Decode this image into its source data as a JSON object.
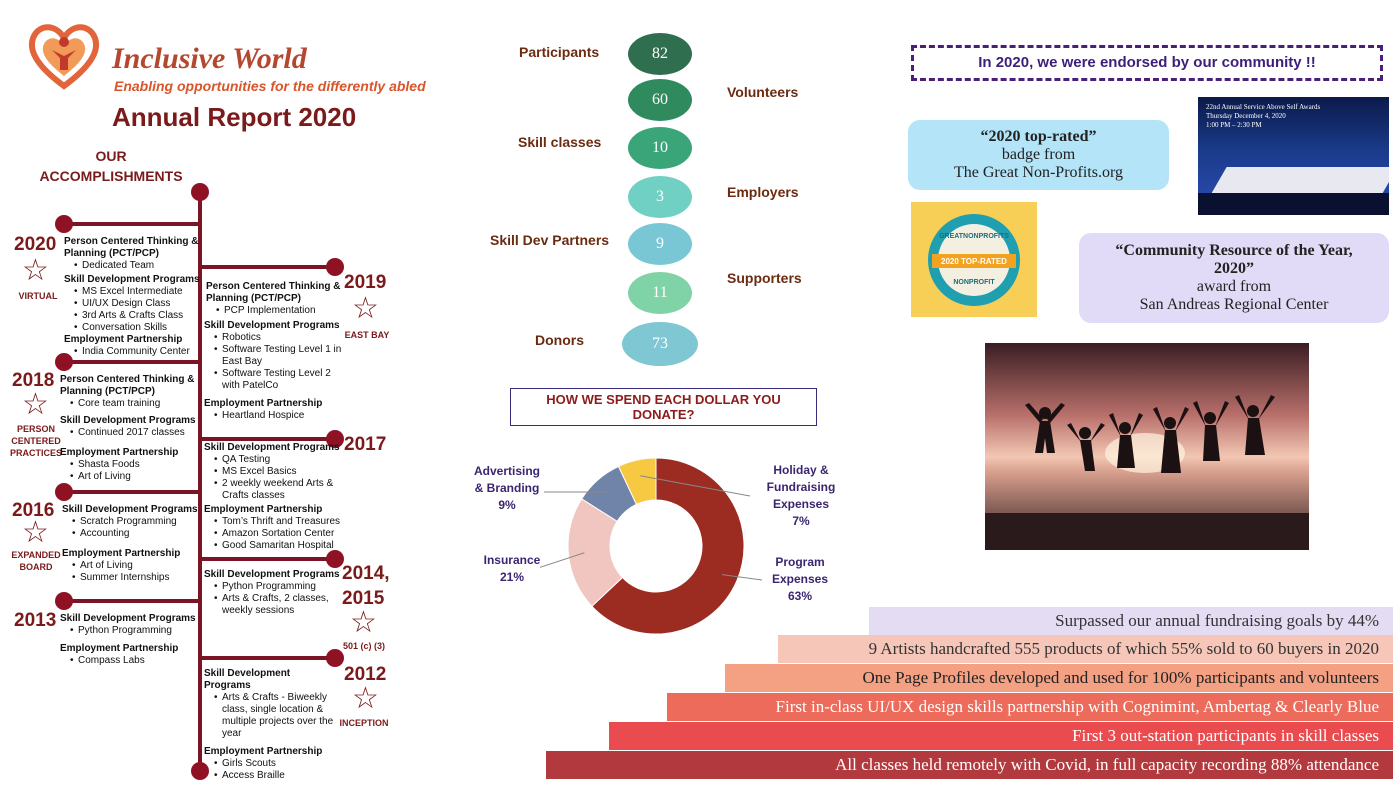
{
  "header": {
    "org_name": "Inclusive World",
    "tagline": "Enabling opportunities for the differently abled",
    "report_title": "Annual Report 2020",
    "accomplishments_title": "OUR ACCOMPLISHMENTS"
  },
  "timeline": {
    "y2020": {
      "year": "2020",
      "label": "VIRTUAL",
      "pct_title": "Person Centered Thinking & Planning (PCT/PCP)",
      "pct_items": [
        "Dedicated Team"
      ],
      "sdp_title": "Skill Development Programs",
      "sdp_items": [
        "MS Excel Intermediate",
        "UI/UX Design Class",
        "3rd Arts & Crafts Class",
        "Conversation Skills"
      ],
      "ep_title": "Employment Partnership",
      "ep_items": [
        "India Community Center"
      ]
    },
    "y2019": {
      "year": "2019",
      "label": "EAST BAY",
      "pct_title": "Person Centered Thinking & Planning (PCT/PCP)",
      "pct_items": [
        "PCP Implementation"
      ],
      "sdp_title": "Skill Development Programs",
      "sdp_items": [
        "Robotics",
        "Software Testing Level 1 in East Bay",
        "Software Testing Level 2 with PatelCo"
      ],
      "ep_title": "Employment Partnership",
      "ep_items": [
        "Heartland Hospice"
      ]
    },
    "y2018": {
      "year": "2018",
      "label": "PERSON CENTERED PRACTICES",
      "pct_title": "Person Centered Thinking & Planning (PCT/PCP)",
      "pct_items": [
        "Core team training"
      ],
      "sdp_title": "Skill Development Programs",
      "sdp_items": [
        "Continued 2017 classes"
      ],
      "ep_title": "Employment Partnership",
      "ep_items": [
        "Shasta Foods",
        "Art of Living"
      ]
    },
    "y2017": {
      "year": "2017",
      "sdp_title": "Skill Development Programs",
      "sdp_items": [
        "QA Testing",
        "MS Excel Basics",
        "2 weekly weekend Arts & Crafts classes"
      ],
      "ep_title": "Employment Partnership",
      "ep_items": [
        "Tom’s Thrift and Treasures",
        "Amazon Sortation Center",
        "Good Samaritan Hospital"
      ]
    },
    "y2016": {
      "year": "2016",
      "label": "EXPANDED BOARD",
      "sdp_title": "Skill Development Programs",
      "sdp_items": [
        "Scratch Programming",
        "Accounting"
      ],
      "ep_title": "Employment Partnership",
      "ep_items": [
        "Art of Living",
        "Summer Internships"
      ]
    },
    "y2014": {
      "year_a": "2014,",
      "year_b": "2015",
      "label": "501 (c) (3)",
      "sdp_title": "Skill Development Programs",
      "sdp_items": [
        "Python Programming",
        "Arts & Crafts, 2 classes, weekly sessions"
      ]
    },
    "y2013": {
      "year": "2013",
      "sdp_title": "Skill Development Programs",
      "sdp_items": [
        "Python Programming"
      ],
      "ep_title": "Employment Partnership",
      "ep_items": [
        "Compass Labs"
      ]
    },
    "y2012": {
      "year": "2012",
      "label": "INCEPTION",
      "sdp_title": "Skill Development Programs",
      "sdp_items": [
        "Arts & Crafts - Biweekly class, single location & multiple projects over the year"
      ],
      "ep_title": "Employment Partnership",
      "ep_items": [
        "Girls Scouts",
        "Access Braille"
      ]
    }
  },
  "stats": [
    {
      "label": "Participants",
      "value": "82",
      "color": "#2f6e4f"
    },
    {
      "label": "Volunteers",
      "value": "60",
      "color": "#2f8a5e"
    },
    {
      "label": "Skill classes",
      "value": "10",
      "color": "#3aa579"
    },
    {
      "label": "Employers",
      "value": "3",
      "color": "#6fd0c3"
    },
    {
      "label": "Skill Dev Partners",
      "value": "9",
      "color": "#79c6d4"
    },
    {
      "label": "Supporters",
      "value": "11",
      "color": "#7fd3a6"
    },
    {
      "label": "Donors",
      "value": "73",
      "color": "#7ec7d3"
    }
  ],
  "spend_title": "HOW WE SPEND EACH DOLLAR YOU DONATE?",
  "chart_data": {
    "type": "pie",
    "categories": [
      "Program Expenses",
      "Insurance",
      "Advertising & Branding",
      "Holiday & Fundraising Expenses"
    ],
    "values": [
      63,
      21,
      9,
      7
    ],
    "colors": [
      "#9c2b22",
      "#f2c6c0",
      "#6f84a8",
      "#f7c942"
    ],
    "labels": {
      "advertising": [
        "Advertising",
        "& Branding",
        "9%"
      ],
      "insurance": [
        "Insurance",
        "21%"
      ],
      "holiday": [
        "Holiday &",
        "Fundraising",
        "Expenses",
        "7%"
      ],
      "program": [
        "Program",
        "Expenses",
        "63%"
      ]
    }
  },
  "endorsement": {
    "title": "In 2020, we were endorsed by our community !!",
    "badge": {
      "line1": "“2020 top-rated”",
      "line2": "badge from",
      "line3": "The Great Non-Profits.org"
    },
    "award": {
      "line1": "“Community Resource of the Year,",
      "line2": "2020”",
      "line3": "award from",
      "line4": "San Andreas Regional Center"
    },
    "seal": {
      "top": "GREATNONPROFITS",
      "mid": "2020 TOP-RATED",
      "bottom": "NONPROFIT"
    },
    "awards_photo": {
      "line1": "22nd Annual Service Above Self Awards",
      "line2": "Thursday December 4, 2020",
      "line3": "1:00 PM – 2:30 PM"
    }
  },
  "achievements": [
    {
      "text": "Surpassed our annual fundraising goals by 44%",
      "color": "#e4dcf3",
      "text_color": "#333333"
    },
    {
      "text": "9 Artists handcrafted 555 products of which 55% sold to 60 buyers in 2020",
      "color": "#f6c7b9",
      "text_color": "#333333"
    },
    {
      "text": "One Page Profiles developed and used for 100% participants and volunteers",
      "color": "#f3a083",
      "text_color": "#222222"
    },
    {
      "text": "First in-class UI/UX design skills partnership with Cognimint, Ambertag & Clearly Blue",
      "color": "#ec6b5a",
      "text_color": "#ffffff"
    },
    {
      "text": "First 3 out-station participants in skill classes",
      "color": "#e94b4e",
      "text_color": "#ffffff"
    },
    {
      "text": "All classes held remotely with Covid, in full capacity recording 88% attendance",
      "color": "#b23a3e",
      "text_color": "#ffffff"
    }
  ]
}
